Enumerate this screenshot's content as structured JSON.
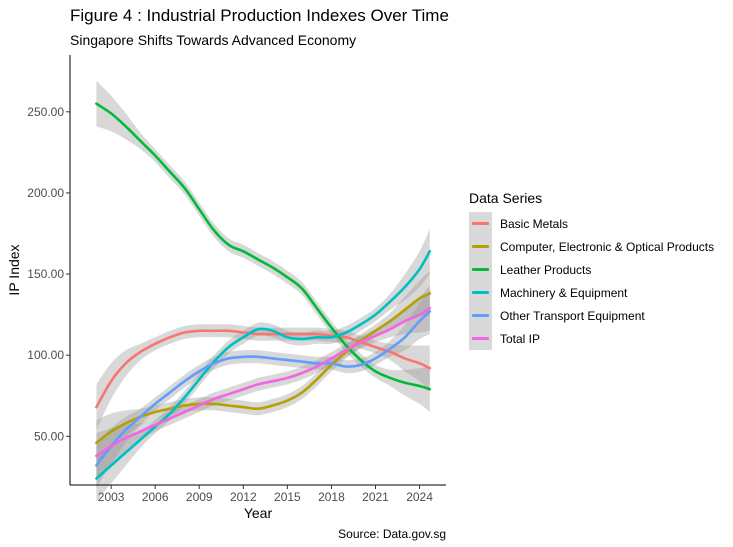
{
  "title": "Figure 4 : Industrial Production Indexes Over Time",
  "subtitle": "Singapore Shifts Towards Advanced Economy",
  "caption": "Source: Data.gov.sg",
  "legend_title": "Data Series",
  "chart_data": {
    "type": "line",
    "xlabel": "Year",
    "ylabel": "IP Index",
    "xlim": [
      2000.2,
      2025.8
    ],
    "ylim": [
      20,
      285
    ],
    "x_ticks": [
      2003,
      2006,
      2009,
      2012,
      2015,
      2018,
      2021,
      2024
    ],
    "x_tick_labels": [
      "2003",
      "2006",
      "2009",
      "2012",
      "2015",
      "2018",
      "2021",
      "2024"
    ],
    "y_ticks": [
      50,
      100,
      150,
      200,
      250
    ],
    "y_tick_labels": [
      "50.00",
      "100.00",
      "150.00",
      "200.00",
      "250.00"
    ],
    "grid": false,
    "legend_position": "right",
    "x": [
      2002,
      2003,
      2004,
      2005,
      2006,
      2007,
      2008,
      2009,
      2010,
      2011,
      2012,
      2013,
      2014,
      2015,
      2016,
      2017,
      2018,
      2019,
      2020,
      2021,
      2022,
      2023,
      2024,
      2024.7
    ],
    "series": [
      {
        "name": "Basic Metals",
        "color": "#F8766D",
        "values": [
          68,
          84,
          95,
          102,
          107,
          111,
          114,
          115,
          115,
          115,
          114,
          113,
          113,
          113,
          113,
          113,
          112,
          111,
          108,
          105,
          102,
          98,
          95,
          92
        ]
      },
      {
        "name": "Computer, Electronic & Optical Products",
        "color": "#B79F00",
        "values": [
          46,
          53,
          58,
          62,
          65,
          67,
          69,
          70,
          70,
          69,
          68,
          67,
          69,
          72,
          77,
          85,
          94,
          102,
          109,
          115,
          121,
          128,
          135,
          138
        ]
      },
      {
        "name": "Leather Products",
        "color": "#00BA38",
        "values": [
          255,
          249,
          241,
          232,
          223,
          213,
          203,
          190,
          177,
          168,
          164,
          159,
          154,
          148,
          141,
          129,
          117,
          106,
          97,
          90,
          86,
          83,
          81,
          79
        ]
      },
      {
        "name": "Machinery & Equipment",
        "color": "#00BFC4",
        "values": [
          24,
          32,
          40,
          48,
          56,
          64,
          74,
          85,
          96,
          105,
          111,
          116,
          115,
          111,
          110,
          111,
          111,
          114,
          119,
          125,
          133,
          142,
          153,
          164
        ]
      },
      {
        "name": "Other Transport Equipment",
        "color": "#619CFF",
        "values": [
          32,
          44,
          54,
          62,
          70,
          77,
          84,
          90,
          95,
          98,
          99,
          99,
          98,
          97,
          96,
          95,
          95,
          93,
          94,
          98,
          104,
          111,
          121,
          127
        ]
      },
      {
        "name": "Total IP",
        "color": "#F564E3",
        "values": [
          38,
          44,
          49,
          53,
          57,
          61,
          65,
          69,
          73,
          76,
          79,
          82,
          84,
          86,
          89,
          93,
          98,
          103,
          108,
          112,
          116,
          121,
          125,
          129
        ]
      }
    ]
  }
}
